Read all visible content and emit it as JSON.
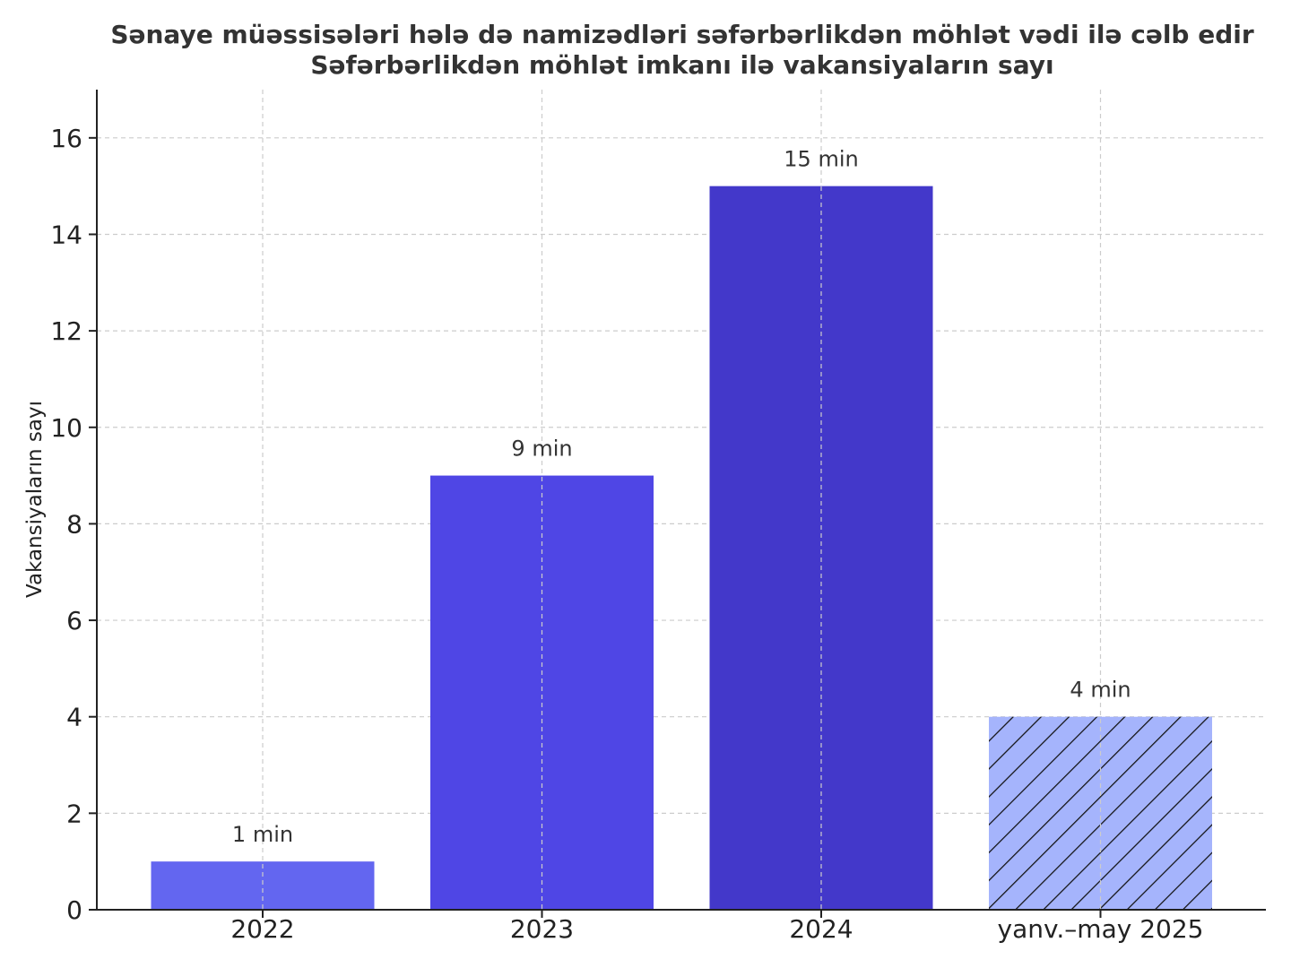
{
  "chart_data": {
    "type": "bar",
    "title": "Sənaye müəssisələri hələ də namizədləri səfərbərlikdən möhlət vədi ilə cəlb edir",
    "subtitle": "Səfərbərlikdən möhlət imkanı ilə vakansiyaların sayı",
    "xlabel": "",
    "ylabel": "Vakansiyaların sayı",
    "categories": [
      "2022",
      "2023",
      "2024",
      "yanv.–may 2025"
    ],
    "values": [
      1,
      9,
      15,
      4
    ],
    "data_labels": [
      "1 min",
      "9 min",
      "15 min",
      "4 min"
    ],
    "bar_colors": [
      "#6366f0",
      "#4f46e5",
      "#4338ca",
      "#a5b4fc"
    ],
    "hatched": [
      false,
      false,
      false,
      true
    ],
    "ylim": [
      0,
      17
    ],
    "yticks": [
      0,
      2,
      4,
      6,
      8,
      10,
      12,
      14,
      16
    ],
    "grid": true,
    "legend": "none"
  }
}
